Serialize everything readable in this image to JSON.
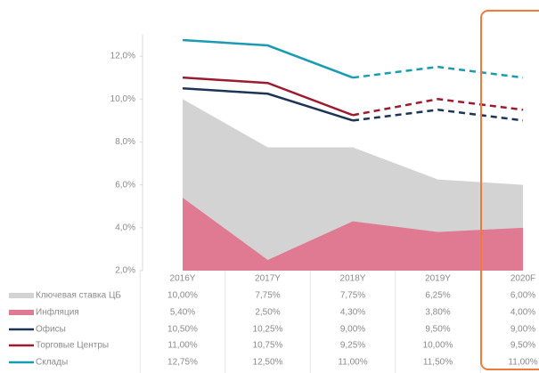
{
  "chart_data": {
    "type": "area-line",
    "categories": [
      "2016Y",
      "2017Y",
      "2018Y",
      "2019Y",
      "2020F"
    ],
    "forecast_start": "2018Y",
    "ylim": [
      2,
      13
    ],
    "yticks": [
      {
        "value": 2,
        "label": "2,0%"
      },
      {
        "value": 4,
        "label": "4,0%"
      },
      {
        "value": 6,
        "label": "6,0%"
      },
      {
        "value": 8,
        "label": "8,0%"
      },
      {
        "value": 10,
        "label": "10,0%"
      },
      {
        "value": 12,
        "label": "12,0%"
      }
    ],
    "series": [
      {
        "name": "Ключевая ставка ЦБ",
        "kind": "area",
        "color": "#d3d3d3",
        "values": [
          10.0,
          7.75,
          7.75,
          6.25,
          6.0
        ],
        "value_labels": [
          "10,00%",
          "7,75%",
          "7,75%",
          "6,25%",
          "6,00%"
        ]
      },
      {
        "name": "Инфляция",
        "kind": "area",
        "color": "#e07a92",
        "values": [
          5.4,
          2.5,
          4.3,
          3.8,
          4.0
        ],
        "value_labels": [
          "5,40%",
          "2,50%",
          "4,30%",
          "3,80%",
          "4,00%"
        ]
      },
      {
        "name": "Офисы",
        "kind": "line",
        "color": "#1c3557",
        "values": [
          10.5,
          10.25,
          9.0,
          9.5,
          9.0
        ],
        "value_labels": [
          "10,50%",
          "10,25%",
          "9,00%",
          "9,50%",
          "9,00%"
        ]
      },
      {
        "name": "Торговые Центры",
        "kind": "line",
        "color": "#9b1b30",
        "values": [
          11.0,
          10.75,
          9.25,
          10.0,
          9.5
        ],
        "value_labels": [
          "11,00%",
          "10,75%",
          "9,25%",
          "10,00%",
          "9,50%"
        ]
      },
      {
        "name": "Склады",
        "kind": "line",
        "color": "#1b9bb3",
        "values": [
          12.75,
          12.5,
          11.0,
          11.5,
          11.0
        ],
        "value_labels": [
          "12,75%",
          "12,50%",
          "11,00%",
          "11,50%",
          "11,00%"
        ]
      }
    ]
  }
}
